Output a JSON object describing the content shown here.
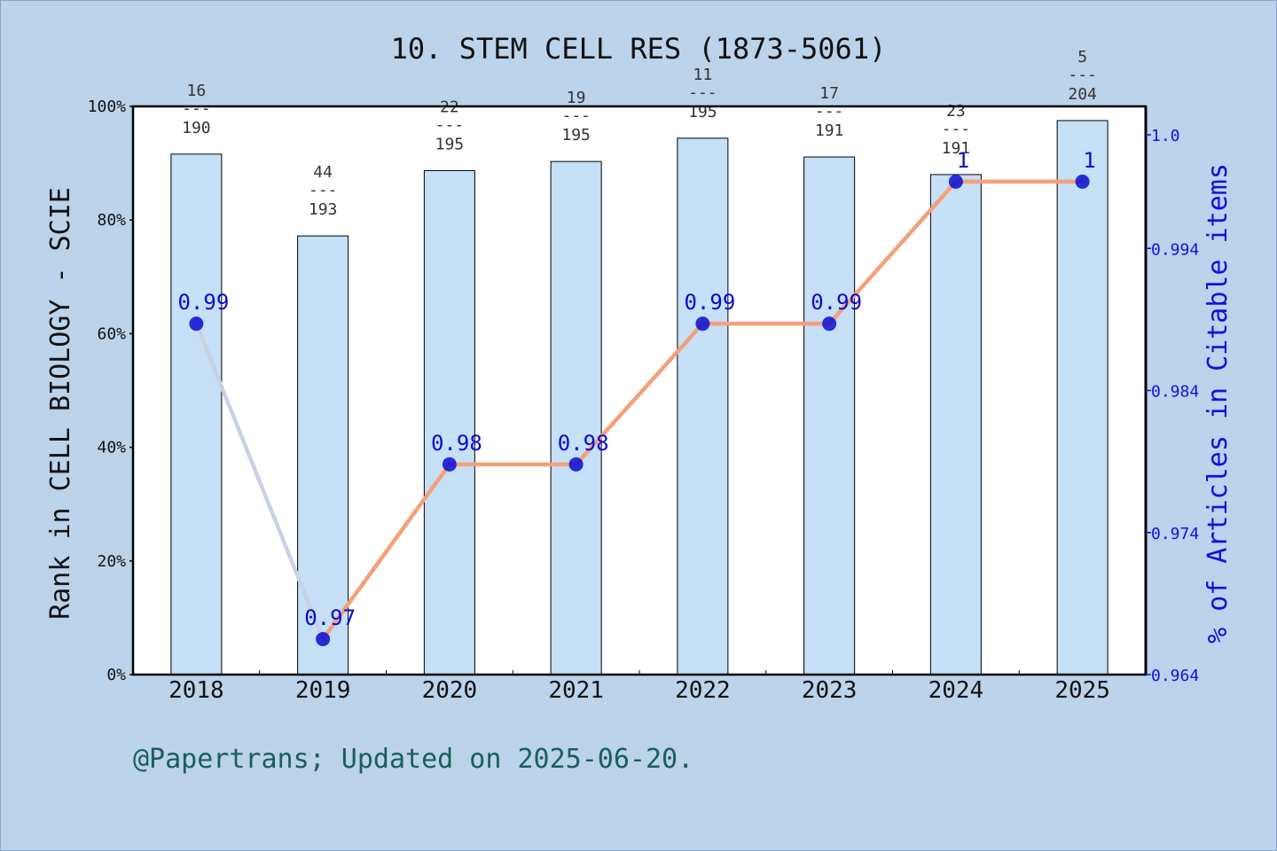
{
  "chart_data": {
    "type": "bar",
    "title": "10. STEM CELL RES (1873-5061)",
    "ylabel_left": "Rank in CELL BIOLOGY - SCIE",
    "ylabel_right": "% of Articles in Citable items",
    "categories": [
      "2018",
      "2019",
      "2020",
      "2021",
      "2022",
      "2023",
      "2024",
      "2025"
    ],
    "left_axis": {
      "ylim": [
        0,
        100
      ],
      "ticks": [
        "0%",
        "20%",
        "40%",
        "60%",
        "80%",
        "100%"
      ],
      "tick_values": [
        0,
        20,
        40,
        60,
        80,
        100
      ]
    },
    "right_axis": {
      "ylim": [
        0.964,
        1.004
      ],
      "ticks": [
        "0.964",
        "0.974",
        "0.984",
        "0.994",
        "1.0"
      ],
      "tick_values": [
        0.964,
        0.974,
        0.984,
        0.994,
        1.002
      ]
    },
    "bars": {
      "name": "Rank percentile",
      "values": [
        91.6,
        77.2,
        88.7,
        90.3,
        94.4,
        91.1,
        88.0,
        97.5
      ],
      "rank_labels": [
        {
          "top": "16",
          "sep": "---",
          "bottom": "190"
        },
        {
          "top": "44",
          "sep": "---",
          "bottom": "193"
        },
        {
          "top": "22",
          "sep": "---",
          "bottom": "195"
        },
        {
          "top": "19",
          "sep": "---",
          "bottom": "195"
        },
        {
          "top": "11",
          "sep": "---",
          "bottom": "195"
        },
        {
          "top": "17",
          "sep": "---",
          "bottom": "191"
        },
        {
          "top": "23",
          "sep": "---",
          "bottom": "191"
        },
        {
          "top": "5",
          "sep": "---",
          "bottom": "204"
        }
      ]
    },
    "line": {
      "name": "% of Articles in Citable items",
      "values": [
        0.9887,
        0.9665,
        0.9788,
        0.9788,
        0.9887,
        0.9887,
        0.9987,
        0.9987
      ],
      "labels": [
        "0.99",
        "0.97",
        "0.98",
        "0.98",
        "0.99",
        "0.99",
        "1",
        "1"
      ]
    },
    "legend": "none",
    "grid": false
  },
  "footer": "@Papertrans; Updated on 2025-06-20.",
  "colors": {
    "background": "#bcd3ec",
    "plot_background": "#ffffff",
    "bar_fill": "#c5e0f7",
    "line_rising": "#f5a07a",
    "line_falling": "#c9d1e4",
    "marker": "#0a0ad0",
    "right_axis": "#1010e0",
    "footer": "#1b5e5a"
  }
}
